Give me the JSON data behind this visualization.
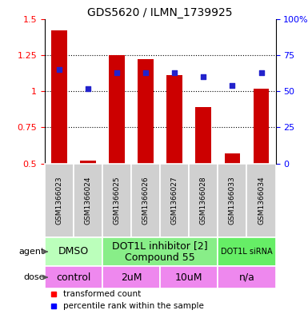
{
  "title": "GDS5620 / ILMN_1739925",
  "samples": [
    "GSM1366023",
    "GSM1366024",
    "GSM1366025",
    "GSM1366026",
    "GSM1366027",
    "GSM1366028",
    "GSM1366033",
    "GSM1366034"
  ],
  "red_values": [
    1.42,
    0.52,
    1.25,
    1.22,
    1.11,
    0.89,
    0.57,
    1.02
  ],
  "blue_percentile": [
    65,
    52,
    63,
    63,
    63,
    60,
    54,
    63
  ],
  "ylim_left": [
    0.5,
    1.5
  ],
  "ylim_right": [
    0,
    100
  ],
  "yticks_left": [
    0.5,
    0.75,
    1.0,
    1.25,
    1.5
  ],
  "ytick_labels_left": [
    "0.5",
    "0.75",
    "1",
    "1.25",
    "1.5"
  ],
  "yticks_right": [
    0,
    25,
    50,
    75,
    100
  ],
  "ytick_labels_right": [
    "0",
    "25",
    "50",
    "75",
    "100%"
  ],
  "hlines": [
    0.75,
    1.0,
    1.25
  ],
  "bar_color": "#cc0000",
  "blue_color": "#2222cc",
  "bar_width": 0.55,
  "agent_groups": [
    {
      "label": "DMSO",
      "cols": [
        0,
        1
      ],
      "color": "#bbffbb",
      "fontsize": 9
    },
    {
      "label": "DOT1L inhibitor [2]\nCompound 55",
      "cols": [
        2,
        3,
        4,
        5
      ],
      "color": "#88ee88",
      "fontsize": 9
    },
    {
      "label": "DOT1L siRNA",
      "cols": [
        6,
        7
      ],
      "color": "#66ee66",
      "fontsize": 7
    }
  ],
  "dose_groups": [
    {
      "label": "control",
      "cols": [
        0,
        1
      ]
    },
    {
      "label": "2uM",
      "cols": [
        2,
        3
      ]
    },
    {
      "label": "10uM",
      "cols": [
        4,
        5
      ]
    },
    {
      "label": "n/a",
      "cols": [
        6,
        7
      ]
    }
  ],
  "dose_color": "#ee88ee",
  "legend_red": "transformed count",
  "legend_blue": "percentile rank within the sample",
  "sample_bg_color": "#d0d0d0"
}
